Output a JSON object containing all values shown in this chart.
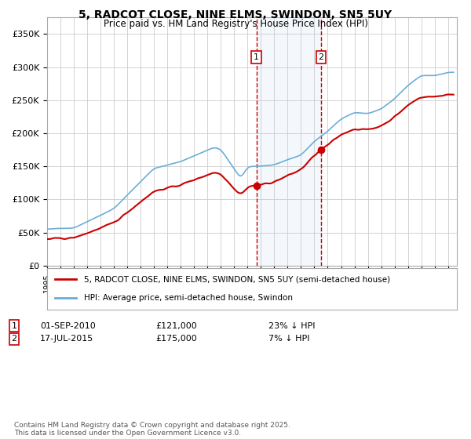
{
  "title": "5, RADCOT CLOSE, NINE ELMS, SWINDON, SN5 5UY",
  "subtitle": "Price paid vs. HM Land Registry's House Price Index (HPI)",
  "legend_line1": "5, RADCOT CLOSE, NINE ELMS, SWINDON, SN5 5UY (semi-detached house)",
  "legend_line2": "HPI: Average price, semi-detached house, Swindon",
  "sale1_date": "01-SEP-2010",
  "sale1_price": "£121,000",
  "sale1_hpi": "23% ↓ HPI",
  "sale2_date": "17-JUL-2015",
  "sale2_price": "£175,000",
  "sale2_hpi": "7% ↓ HPI",
  "footer": "Contains HM Land Registry data © Crown copyright and database right 2025.\nThis data is licensed under the Open Government Licence v3.0.",
  "hpi_color": "#6baed6",
  "price_color": "#cc0000",
  "shade_color": "#ddeeff",
  "dashed_color": "#cc0000",
  "background_color": "#ffffff",
  "grid_color": "#cccccc"
}
